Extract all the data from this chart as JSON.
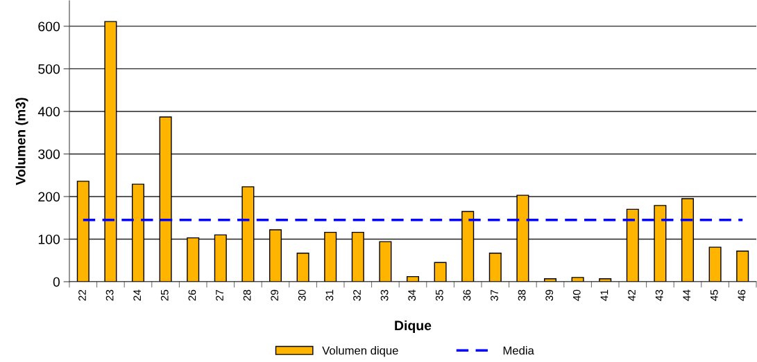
{
  "chart_data": {
    "type": "bar",
    "xlabel": "Dique",
    "ylabel": "Volumen (m3)",
    "categories": [
      "22",
      "23",
      "24",
      "25",
      "26",
      "27",
      "28",
      "29",
      "30",
      "31",
      "32",
      "33",
      "34",
      "35",
      "36",
      "37",
      "38",
      "39",
      "40",
      "41",
      "42",
      "43",
      "44",
      "45",
      "46"
    ],
    "series": [
      {
        "name": "Volumen dique",
        "color": "#ffb400",
        "values": [
          236,
          611,
          229,
          387,
          103,
          110,
          223,
          122,
          67,
          116,
          116,
          94,
          12,
          45,
          165,
          67,
          203,
          7,
          10,
          7,
          170,
          179,
          195,
          81,
          72
        ]
      }
    ],
    "ylim": [
      0,
      660
    ],
    "yticks": [
      0,
      100,
      200,
      300,
      400,
      500,
      600
    ],
    "grid": "y",
    "legend": "bottom",
    "ref_lines": [
      {
        "axis": "y",
        "value": 145,
        "label": "Media",
        "color": "#0000ff",
        "line_style": "dashed"
      }
    ]
  }
}
